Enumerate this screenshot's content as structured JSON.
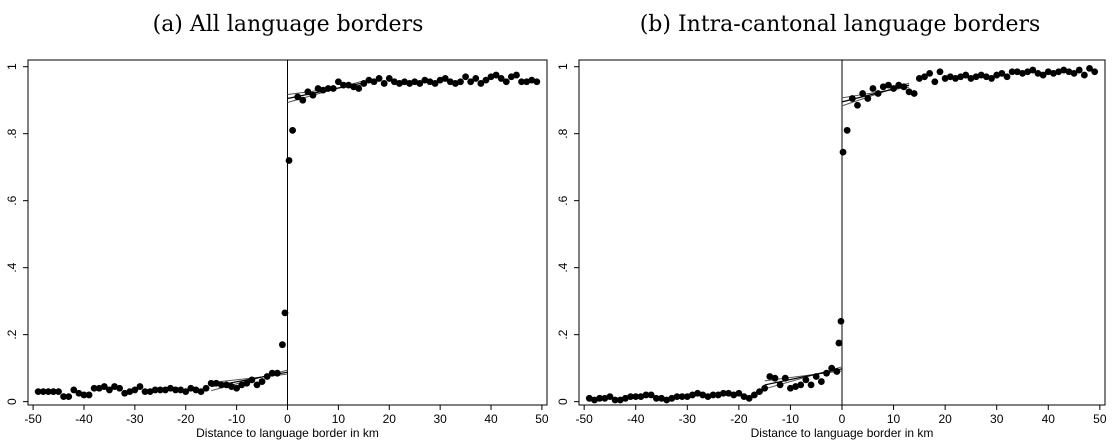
{
  "chart_data": [
    {
      "type": "scatter",
      "title": "(a) All language borders",
      "xlabel": "Distance to language border in km",
      "ylabel": "",
      "xlim": [
        -51,
        51
      ],
      "ylim": [
        -0.01,
        1.02
      ],
      "xticks": [
        "-50",
        "-40",
        "-30",
        "-20",
        "-10",
        "0",
        "10",
        "20",
        "30",
        "40",
        "50"
      ],
      "yticks": [
        "0",
        ".2",
        ".4",
        ".6",
        ".8",
        "1"
      ],
      "border_line_x": 0,
      "points": [
        [
          -49,
          0.03
        ],
        [
          -48,
          0.03
        ],
        [
          -47,
          0.03
        ],
        [
          -46,
          0.03
        ],
        [
          -45,
          0.03
        ],
        [
          -44,
          0.015
        ],
        [
          -43,
          0.015
        ],
        [
          -42,
          0.035
        ],
        [
          -41,
          0.025
        ],
        [
          -40,
          0.02
        ],
        [
          -39,
          0.02
        ],
        [
          -38,
          0.04
        ],
        [
          -37,
          0.04
        ],
        [
          -36,
          0.045
        ],
        [
          -35,
          0.035
        ],
        [
          -34,
          0.045
        ],
        [
          -33,
          0.04
        ],
        [
          -32,
          0.025
        ],
        [
          -31,
          0.03
        ],
        [
          -30,
          0.035
        ],
        [
          -29,
          0.045
        ],
        [
          -28,
          0.03
        ],
        [
          -27,
          0.03
        ],
        [
          -26,
          0.035
        ],
        [
          -25,
          0.035
        ],
        [
          -24,
          0.035
        ],
        [
          -23,
          0.04
        ],
        [
          -22,
          0.035
        ],
        [
          -21,
          0.035
        ],
        [
          -20,
          0.03
        ],
        [
          -19,
          0.04
        ],
        [
          -18,
          0.035
        ],
        [
          -17,
          0.03
        ],
        [
          -16,
          0.04
        ],
        [
          -15,
          0.055
        ],
        [
          -14,
          0.055
        ],
        [
          -13,
          0.05
        ],
        [
          -12,
          0.05
        ],
        [
          -11,
          0.045
        ],
        [
          -10,
          0.04
        ],
        [
          -9,
          0.05
        ],
        [
          -8,
          0.055
        ],
        [
          -7,
          0.065
        ],
        [
          -6,
          0.05
        ],
        [
          -5,
          0.06
        ],
        [
          -4,
          0.075
        ],
        [
          -3,
          0.085
        ],
        [
          -2,
          0.085
        ],
        [
          -1,
          0.17
        ],
        [
          -0.5,
          0.265
        ],
        [
          0.3,
          0.72
        ],
        [
          1,
          0.81
        ],
        [
          2,
          0.91
        ],
        [
          3,
          0.9
        ],
        [
          4,
          0.925
        ],
        [
          5,
          0.915
        ],
        [
          6,
          0.935
        ],
        [
          7,
          0.93
        ],
        [
          8,
          0.935
        ],
        [
          9,
          0.935
        ],
        [
          10,
          0.955
        ],
        [
          11,
          0.945
        ],
        [
          12,
          0.945
        ],
        [
          13,
          0.94
        ],
        [
          14,
          0.935
        ],
        [
          15,
          0.95
        ],
        [
          16,
          0.96
        ],
        [
          17,
          0.955
        ],
        [
          18,
          0.965
        ],
        [
          19,
          0.95
        ],
        [
          20,
          0.965
        ],
        [
          21,
          0.955
        ],
        [
          22,
          0.95
        ],
        [
          23,
          0.955
        ],
        [
          24,
          0.95
        ],
        [
          25,
          0.955
        ],
        [
          26,
          0.95
        ],
        [
          27,
          0.96
        ],
        [
          28,
          0.955
        ],
        [
          29,
          0.95
        ],
        [
          30,
          0.96
        ],
        [
          31,
          0.965
        ],
        [
          32,
          0.955
        ],
        [
          33,
          0.95
        ],
        [
          34,
          0.955
        ],
        [
          35,
          0.97
        ],
        [
          36,
          0.955
        ],
        [
          37,
          0.965
        ],
        [
          38,
          0.95
        ],
        [
          39,
          0.96
        ],
        [
          40,
          0.97
        ],
        [
          41,
          0.975
        ],
        [
          42,
          0.965
        ],
        [
          43,
          0.955
        ],
        [
          44,
          0.97
        ],
        [
          45,
          0.975
        ],
        [
          46,
          0.955
        ],
        [
          47,
          0.955
        ],
        [
          48,
          0.96
        ],
        [
          49,
          0.955
        ]
      ],
      "fit_left": {
        "x": [
          -15,
          0
        ],
        "center": [
          0.045,
          0.088
        ],
        "band": 0.012
      },
      "fit_right": {
        "x": [
          0,
          15
        ],
        "center": [
          0.905,
          0.952
        ],
        "band": 0.012
      }
    },
    {
      "type": "scatter",
      "title": "(b) Intra-cantonal language borders",
      "xlabel": "Distance to language border in km",
      "ylabel": "",
      "xlim": [
        -51,
        51
      ],
      "ylim": [
        -0.01,
        1.02
      ],
      "xticks": [
        "-50",
        "-40",
        "-30",
        "-20",
        "-10",
        "0",
        "10",
        "20",
        "30",
        "40",
        "50"
      ],
      "yticks": [
        "0",
        ".2",
        ".4",
        ".6",
        ".8",
        "1"
      ],
      "border_line_x": 0,
      "points": [
        [
          -49,
          0.01
        ],
        [
          -48,
          0.005
        ],
        [
          -47,
          0.01
        ],
        [
          -46,
          0.01
        ],
        [
          -45,
          0.015
        ],
        [
          -44,
          0.005
        ],
        [
          -43,
          0.005
        ],
        [
          -42,
          0.01
        ],
        [
          -41,
          0.015
        ],
        [
          -40,
          0.015
        ],
        [
          -39,
          0.015
        ],
        [
          -38,
          0.02
        ],
        [
          -37,
          0.02
        ],
        [
          -36,
          0.01
        ],
        [
          -35,
          0.01
        ],
        [
          -34,
          0.005
        ],
        [
          -33,
          0.01
        ],
        [
          -32,
          0.015
        ],
        [
          -31,
          0.015
        ],
        [
          -30,
          0.015
        ],
        [
          -29,
          0.02
        ],
        [
          -28,
          0.025
        ],
        [
          -27,
          0.02
        ],
        [
          -26,
          0.015
        ],
        [
          -25,
          0.02
        ],
        [
          -24,
          0.02
        ],
        [
          -23,
          0.025
        ],
        [
          -22,
          0.025
        ],
        [
          -21,
          0.02
        ],
        [
          -20,
          0.025
        ],
        [
          -19,
          0.015
        ],
        [
          -18,
          0.01
        ],
        [
          -17,
          0.02
        ],
        [
          -16,
          0.03
        ],
        [
          -15,
          0.04
        ],
        [
          -14,
          0.075
        ],
        [
          -13,
          0.07
        ],
        [
          -12,
          0.05
        ],
        [
          -11,
          0.07
        ],
        [
          -10,
          0.04
        ],
        [
          -9,
          0.045
        ],
        [
          -8,
          0.05
        ],
        [
          -7,
          0.065
        ],
        [
          -6,
          0.05
        ],
        [
          -5,
          0.075
        ],
        [
          -4,
          0.06
        ],
        [
          -3,
          0.085
        ],
        [
          -2,
          0.1
        ],
        [
          -1,
          0.09
        ],
        [
          -0.6,
          0.175
        ],
        [
          -0.2,
          0.24
        ],
        [
          0.2,
          0.745
        ],
        [
          1,
          0.81
        ],
        [
          2,
          0.905
        ],
        [
          3,
          0.885
        ],
        [
          4,
          0.92
        ],
        [
          5,
          0.905
        ],
        [
          6,
          0.935
        ],
        [
          7,
          0.92
        ],
        [
          8,
          0.94
        ],
        [
          9,
          0.945
        ],
        [
          10,
          0.935
        ],
        [
          11,
          0.945
        ],
        [
          12,
          0.94
        ],
        [
          13,
          0.925
        ],
        [
          14,
          0.92
        ],
        [
          15,
          0.965
        ],
        [
          16,
          0.97
        ],
        [
          17,
          0.98
        ],
        [
          18,
          0.955
        ],
        [
          19,
          0.985
        ],
        [
          20,
          0.965
        ],
        [
          21,
          0.97
        ],
        [
          22,
          0.965
        ],
        [
          23,
          0.97
        ],
        [
          24,
          0.975
        ],
        [
          25,
          0.965
        ],
        [
          26,
          0.97
        ],
        [
          27,
          0.975
        ],
        [
          28,
          0.97
        ],
        [
          29,
          0.965
        ],
        [
          30,
          0.975
        ],
        [
          31,
          0.98
        ],
        [
          32,
          0.97
        ],
        [
          33,
          0.985
        ],
        [
          34,
          0.985
        ],
        [
          35,
          0.98
        ],
        [
          36,
          0.985
        ],
        [
          37,
          0.99
        ],
        [
          38,
          0.98
        ],
        [
          39,
          0.975
        ],
        [
          40,
          0.985
        ],
        [
          41,
          0.98
        ],
        [
          42,
          0.985
        ],
        [
          43,
          0.99
        ],
        [
          44,
          0.985
        ],
        [
          45,
          0.98
        ],
        [
          46,
          0.99
        ],
        [
          47,
          0.975
        ],
        [
          48,
          0.995
        ],
        [
          49,
          0.985
        ]
      ],
      "fit_left": {
        "x": [
          -15,
          0
        ],
        "center": [
          0.05,
          0.098
        ],
        "band": 0.012
      },
      "fit_right": {
        "x": [
          0,
          13
        ],
        "center": [
          0.895,
          0.945
        ],
        "band": 0.012
      }
    }
  ]
}
